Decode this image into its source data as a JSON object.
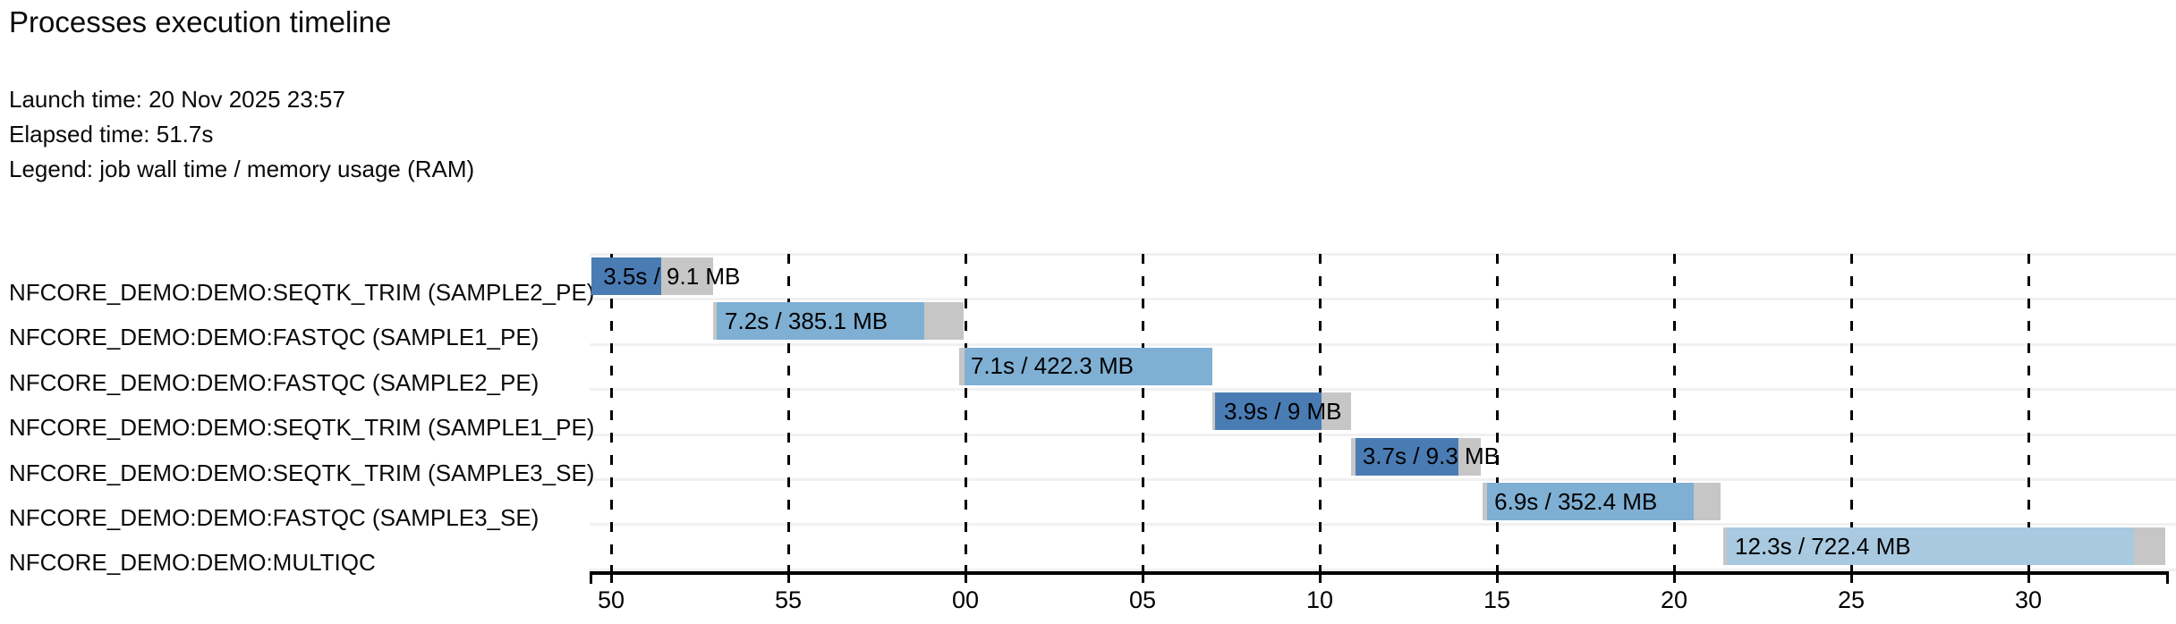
{
  "header": {
    "title": "Processes execution timeline",
    "launch_time": "Launch time: 20 Nov 2025 23:57",
    "elapsed_time": "Elapsed time: 51.7s",
    "legend": "Legend: job wall time / memory usage (RAM)"
  },
  "colors": {
    "seqtk_trim": "#4a7cb4",
    "fastqc": "#7fb0d4",
    "multiqc": "#a8c9e0",
    "wait_gray": "#c6c6c6",
    "separator": "#f1f1f1",
    "grid": "#000000",
    "text": "#0a0a0a"
  },
  "chart_data": {
    "type": "timeline",
    "title": "Processes execution timeline",
    "launch_time": "20 Nov 2025 23:57",
    "elapsed_time_s": 51.7,
    "legend": "job wall time / memory usage (RAM)",
    "x_axis": {
      "unit": "clock seconds from 23:57:50 to 23:58:30",
      "tick_labels": [
        "50",
        "55",
        "00",
        "05",
        "10",
        "15",
        "20",
        "25",
        "30"
      ],
      "tick_times_s": [
        50,
        55,
        60,
        65,
        70,
        75,
        80,
        85,
        90
      ],
      "grid": "dashed-vertical"
    },
    "tasks": [
      {
        "label": "NFCORE_DEMO:DEMO:SEQTK_TRIM (SAMPLE2_PE)",
        "bar_label": "3.5s / 9.1 MB",
        "wall_time": "3.5s",
        "memory": "9.1 MB",
        "start_s": 49.45,
        "lead_s": 0,
        "run_s": 1.97,
        "tail_s": 1.46,
        "color": "#4a7cb4"
      },
      {
        "label": "NFCORE_DEMO:DEMO:FASTQC (SAMPLE1_PE)",
        "bar_label": "7.2s / 385.1 MB",
        "wall_time": "7.2s",
        "memory": "385.1 MB",
        "start_s": 52.88,
        "lead_s": 0.1,
        "run_s": 5.86,
        "tail_s": 1.11,
        "color": "#7fb0d4"
      },
      {
        "label": "NFCORE_DEMO:DEMO:FASTQC (SAMPLE2_PE)",
        "bar_label": "7.1s / 422.3 MB",
        "wall_time": "7.1s",
        "memory": "422.3 MB",
        "start_s": 59.82,
        "lead_s": 0.15,
        "run_s": 7.0,
        "tail_s": 0,
        "color": "#7fb0d4"
      },
      {
        "label": "NFCORE_DEMO:DEMO:SEQTK_TRIM (SAMPLE1_PE)",
        "bar_label": "3.9s / 9 MB",
        "wall_time": "3.9s",
        "memory": "9 MB",
        "start_s": 66.97,
        "lead_s": 0.08,
        "run_s": 3.0,
        "tail_s": 0.84,
        "color": "#4a7cb4"
      },
      {
        "label": "NFCORE_DEMO:DEMO:SEQTK_TRIM (SAMPLE3_SE)",
        "bar_label": "3.7s / 9.3 MB",
        "wall_time": "3.7s",
        "memory": "9.3 MB",
        "start_s": 70.88,
        "lead_s": 0.13,
        "run_s": 2.9,
        "tail_s": 0.63,
        "color": "#4a7cb4"
      },
      {
        "label": "NFCORE_DEMO:DEMO:FASTQC (SAMPLE3_SE)",
        "bar_label": "6.9s / 352.4 MB",
        "wall_time": "6.9s",
        "memory": "352.4 MB",
        "start_s": 74.6,
        "lead_s": 0.13,
        "run_s": 5.83,
        "tail_s": 0.76,
        "color": "#7fb0d4"
      },
      {
        "label": "NFCORE_DEMO:DEMO:MULTIQC",
        "bar_label": "12.3s / 722.4 MB",
        "wall_time": "12.3s",
        "memory": "722.4 MB",
        "start_s": 81.39,
        "lead_s": 0.1,
        "run_s": 11.49,
        "tail_s": 0.88,
        "color": "#a8c9e0"
      }
    ]
  }
}
